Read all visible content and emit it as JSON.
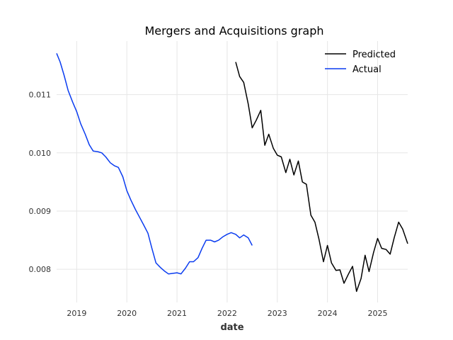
{
  "chart_data": {
    "type": "line",
    "title": "Mergers and Acquisitions graph",
    "xlabel": "date",
    "ylabel": "",
    "xlim": [
      2018.6,
      2025.6
    ],
    "ylim": [
      0.00743,
      0.01192
    ],
    "grid": true,
    "legend_position": "top-right",
    "x_ticks": [
      {
        "value": 2019,
        "label": "2019"
      },
      {
        "value": 2020,
        "label": "2020"
      },
      {
        "value": 2021,
        "label": "2021"
      },
      {
        "value": 2022,
        "label": "2022"
      },
      {
        "value": 2023,
        "label": "2023"
      },
      {
        "value": 2024,
        "label": "2024"
      },
      {
        "value": 2025,
        "label": "2025"
      }
    ],
    "y_ticks": [
      {
        "value": 0.008,
        "label": "0.008"
      },
      {
        "value": 0.009,
        "label": "0.009"
      },
      {
        "value": 0.01,
        "label": "0.010"
      },
      {
        "value": 0.011,
        "label": "0.011"
      }
    ],
    "series": [
      {
        "name": "Predicted",
        "color": "#000000",
        "x": [
          2022.17,
          2022.25,
          2022.33,
          2022.42,
          2022.5,
          2022.58,
          2022.67,
          2022.75,
          2022.83,
          2022.92,
          2023.0,
          2023.08,
          2023.17,
          2023.25,
          2023.33,
          2023.42,
          2023.5,
          2023.58,
          2023.67,
          2023.75,
          2023.83,
          2023.92,
          2024.0,
          2024.08,
          2024.17,
          2024.25,
          2024.33,
          2024.42,
          2024.5,
          2024.58,
          2024.67,
          2024.75,
          2024.83,
          2024.92,
          2025.0,
          2025.08,
          2025.17,
          2025.25,
          2025.33,
          2025.42,
          2025.5,
          2025.6
        ],
        "y": [
          0.01156,
          0.01131,
          0.01121,
          0.01084,
          0.01043,
          0.01056,
          0.01073,
          0.01013,
          0.01032,
          0.01008,
          0.00996,
          0.00993,
          0.00966,
          0.00989,
          0.00962,
          0.00986,
          0.0095,
          0.00946,
          0.00893,
          0.00881,
          0.00852,
          0.00813,
          0.00841,
          0.00811,
          0.00798,
          0.00799,
          0.00776,
          0.00792,
          0.00805,
          0.00762,
          0.00784,
          0.00824,
          0.00796,
          0.00829,
          0.00853,
          0.00836,
          0.00834,
          0.00826,
          0.00854,
          0.00881,
          0.00869,
          0.00844
        ]
      },
      {
        "name": "Actual",
        "color": "#0a3cf0",
        "x": [
          2018.6,
          2018.67,
          2018.75,
          2018.83,
          2018.92,
          2019.0,
          2019.08,
          2019.17,
          2019.25,
          2019.33,
          2019.42,
          2019.5,
          2019.58,
          2019.67,
          2019.75,
          2019.83,
          2019.92,
          2020.0,
          2020.08,
          2020.17,
          2020.25,
          2020.33,
          2020.42,
          2020.5,
          2020.58,
          2020.67,
          2020.75,
          2020.83,
          2020.92,
          2021.0,
          2021.08,
          2021.17,
          2021.25,
          2021.33,
          2021.42,
          2021.5,
          2021.58,
          2021.67,
          2021.75,
          2021.83,
          2021.92,
          2022.0,
          2022.08,
          2022.17,
          2022.25,
          2022.33,
          2022.42,
          2022.5
        ],
        "y": [
          0.01171,
          0.01156,
          0.01133,
          0.01107,
          0.01087,
          0.01071,
          0.0105,
          0.01032,
          0.01014,
          0.01003,
          0.01002,
          0.01,
          0.00993,
          0.00983,
          0.00978,
          0.00975,
          0.00959,
          0.00935,
          0.00919,
          0.00903,
          0.0089,
          0.00877,
          0.00862,
          0.00836,
          0.00811,
          0.00803,
          0.00797,
          0.00792,
          0.00793,
          0.00794,
          0.00792,
          0.00802,
          0.00813,
          0.00813,
          0.0082,
          0.00836,
          0.0085,
          0.0085,
          0.00847,
          0.0085,
          0.00856,
          0.0086,
          0.00863,
          0.0086,
          0.00854,
          0.00859,
          0.00854,
          0.00841
        ]
      }
    ]
  }
}
